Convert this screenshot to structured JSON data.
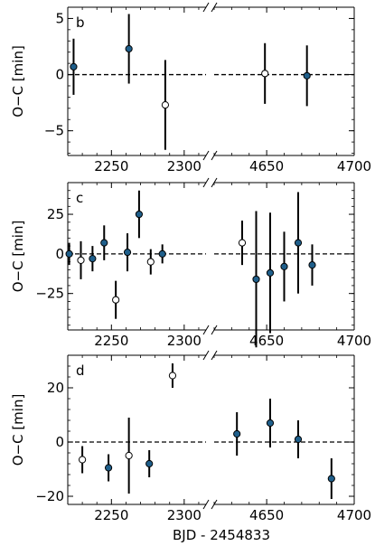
{
  "figure": {
    "xlabel": "BJD - 2454833",
    "break_mark": "//"
  },
  "colors": {
    "filled_marker": "#1f5f8b",
    "open_marker": "#ffffff",
    "marker_edge": "#000000",
    "errorbar": "#000000",
    "zero_line": "#000000"
  },
  "chart_data": [
    {
      "type": "scatter",
      "panel_label": "b",
      "ylabel": "O−C [min]",
      "ylim": [
        -7.2,
        6
      ],
      "yticks": [
        -5,
        0,
        5
      ],
      "yticklabels": [
        "−5",
        "0",
        "5"
      ],
      "x_segments": [
        [
          2220,
          2315
        ],
        [
          4620,
          4700
        ]
      ],
      "xticks_left": [
        2250,
        2300
      ],
      "xticks_right": [
        4650,
        4700
      ],
      "zero_line": "dashed",
      "points": [
        {
          "x": 2224,
          "y": 0.7,
          "err": 2.5,
          "filled": true
        },
        {
          "x": 2262,
          "y": 2.3,
          "err": 3.1,
          "filled": true
        },
        {
          "x": 2287,
          "y": -2.7,
          "err": 4.0,
          "filled": false
        },
        {
          "x": 4649,
          "y": 0.1,
          "err": 2.7,
          "filled": false
        },
        {
          "x": 4673,
          "y": -0.1,
          "err": 2.7,
          "filled": true
        }
      ]
    },
    {
      "type": "scatter",
      "panel_label": "c",
      "ylabel": "O−C [min]",
      "ylim": [
        -48,
        45
      ],
      "yticks": [
        -25,
        0,
        25
      ],
      "yticklabels": [
        "−25",
        "0",
        "25"
      ],
      "x_segments": [
        [
          2220,
          2315
        ],
        [
          4620,
          4700
        ]
      ],
      "xticks_left": [
        2250,
        2300
      ],
      "xticks_right": [
        4650,
        4700
      ],
      "zero_line": "dashed",
      "points": [
        {
          "x": 2221,
          "y": 0,
          "err": 7,
          "filled": true
        },
        {
          "x": 2229,
          "y": -4,
          "err": 12,
          "filled": false
        },
        {
          "x": 2237,
          "y": -3,
          "err": 8,
          "filled": true
        },
        {
          "x": 2245,
          "y": 7,
          "err": 11,
          "filled": true
        },
        {
          "x": 2253,
          "y": -29,
          "err": 12,
          "filled": false
        },
        {
          "x": 2261,
          "y": 1,
          "err": 12,
          "filled": true
        },
        {
          "x": 2269,
          "y": 25,
          "err": 15,
          "filled": true
        },
        {
          "x": 2277,
          "y": -5,
          "err": 8,
          "filled": false
        },
        {
          "x": 2285,
          "y": 0,
          "err": 6,
          "filled": true
        },
        {
          "x": 4636,
          "y": 7,
          "err": 14,
          "filled": false
        },
        {
          "x": 4644,
          "y": -16,
          "err": 43,
          "filled": true
        },
        {
          "x": 4652,
          "y": -12,
          "err": 38,
          "filled": true
        },
        {
          "x": 4660,
          "y": -8,
          "err": 22,
          "filled": true
        },
        {
          "x": 4668,
          "y": 7,
          "err": 32,
          "filled": true
        },
        {
          "x": 4676,
          "y": -7,
          "err": 13,
          "filled": true
        }
      ]
    },
    {
      "type": "scatter",
      "panel_label": "d",
      "ylabel": "O−C [min]",
      "ylim": [
        -23,
        32
      ],
      "yticks": [
        -20,
        0,
        20
      ],
      "yticklabels": [
        "−20",
        "0",
        "20"
      ],
      "x_segments": [
        [
          2220,
          2315
        ],
        [
          4620,
          4700
        ]
      ],
      "xticks_left": [
        2250,
        2300
      ],
      "xticks_right": [
        4650,
        4700
      ],
      "zero_line": "dashed",
      "points": [
        {
          "x": 2230,
          "y": -6.5,
          "err": 5,
          "filled": false
        },
        {
          "x": 2248,
          "y": -9.5,
          "err": 5,
          "filled": true
        },
        {
          "x": 2262,
          "y": -5,
          "err": 14,
          "filled": false
        },
        {
          "x": 2276,
          "y": -8,
          "err": 5,
          "filled": true
        },
        {
          "x": 2292,
          "y": 24.5,
          "err": 4.5,
          "filled": false
        },
        {
          "x": 4633,
          "y": 3,
          "err": 8,
          "filled": true
        },
        {
          "x": 4652,
          "y": 7,
          "err": 9,
          "filled": true
        },
        {
          "x": 4668,
          "y": 1,
          "err": 7,
          "filled": true
        },
        {
          "x": 4687,
          "y": -13.5,
          "err": 7.5,
          "filled": true
        }
      ]
    }
  ]
}
